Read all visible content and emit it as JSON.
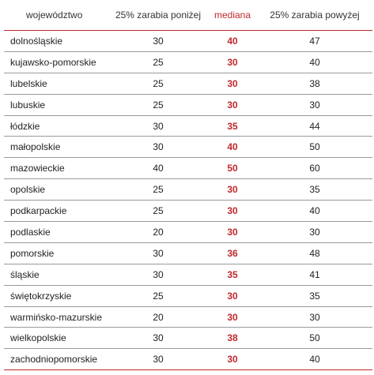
{
  "headers": {
    "region": "województwo",
    "p25": "25% zarabia poniżej",
    "median": "mediana",
    "p75": "25% zarabia powyżej"
  },
  "rows": [
    {
      "region": "dolnośląskie",
      "p25": "30",
      "median": "40",
      "p75": "47"
    },
    {
      "region": "kujawsko-pomorskie",
      "p25": "25",
      "median": "30",
      "p75": "40"
    },
    {
      "region": "lubelskie",
      "p25": "25",
      "median": "30",
      "p75": "38"
    },
    {
      "region": "lubuskie",
      "p25": "25",
      "median": "30",
      "p75": "30"
    },
    {
      "region": "łódzkie",
      "p25": "30",
      "median": "35",
      "p75": "44"
    },
    {
      "region": "małopolskie",
      "p25": "30",
      "median": "40",
      "p75": "50"
    },
    {
      "region": "mazowieckie",
      "p25": "40",
      "median": "50",
      "p75": "60"
    },
    {
      "region": "opolskie",
      "p25": "25",
      "median": "30",
      "p75": "35"
    },
    {
      "region": "podkarpackie",
      "p25": "25",
      "median": "30",
      "p75": "40"
    },
    {
      "region": "podlaskie",
      "p25": "20",
      "median": "30",
      "p75": "30"
    },
    {
      "region": "pomorskie",
      "p25": "30",
      "median": "36",
      "p75": "48"
    },
    {
      "region": "śląskie",
      "p25": "30",
      "median": "35",
      "p75": "41"
    },
    {
      "region": "świętokrzyskie",
      "p25": "25",
      "median": "30",
      "p75": "35"
    },
    {
      "region": "warmińsko-mazurskie",
      "p25": "20",
      "median": "30",
      "p75": "30"
    },
    {
      "region": "wielkopolskie",
      "p25": "30",
      "median": "38",
      "p75": "50"
    },
    {
      "region": "zachodniopomorskie",
      "p25": "30",
      "median": "30",
      "p75": "40"
    }
  ],
  "colors": {
    "accent": "#c0282d",
    "divider": "#9a9a9a"
  }
}
